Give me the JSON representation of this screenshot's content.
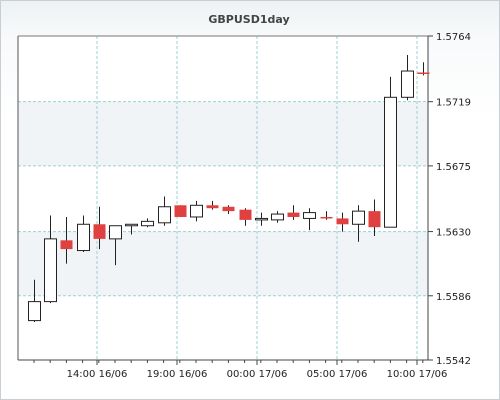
{
  "chart_data": {
    "type": "candlestick",
    "title": "GBPUSD1day",
    "y_axis_position": "right",
    "ylim": [
      1.5542,
      1.5764
    ],
    "y_ticks": [
      "1.5764",
      "1.5719",
      "1.5675",
      "1.5630",
      "1.5586",
      "1.5542"
    ],
    "x_ticks": [
      "14:00 16/06",
      "19:00 16/06",
      "00:00 17/06",
      "05:00 17/06",
      "10:00 17/06"
    ],
    "grid": true,
    "background_bands": [
      "#ffffff",
      "#f0f4f7"
    ],
    "colors": {
      "up": "#ffffff",
      "down": "#e04040",
      "wick": "#222222",
      "grid": "#9ed0d6"
    },
    "candles": [
      {
        "open": 1.5569,
        "high": 1.5597,
        "low": 1.5568,
        "close": 1.5582
      },
      {
        "open": 1.5582,
        "high": 1.5641,
        "low": 1.5581,
        "close": 1.5625
      },
      {
        "open": 1.5624,
        "high": 1.564,
        "low": 1.5608,
        "close": 1.5618
      },
      {
        "open": 1.5617,
        "high": 1.5641,
        "low": 1.5616,
        "close": 1.5635
      },
      {
        "open": 1.5635,
        "high": 1.5647,
        "low": 1.5618,
        "close": 1.5625
      },
      {
        "open": 1.5625,
        "high": 1.5634,
        "low": 1.5607,
        "close": 1.5634
      },
      {
        "open": 1.5634,
        "high": 1.5635,
        "low": 1.5628,
        "close": 1.5635
      },
      {
        "open": 1.5634,
        "high": 1.5639,
        "low": 1.5633,
        "close": 1.5637
      },
      {
        "open": 1.5636,
        "high": 1.5654,
        "low": 1.5634,
        "close": 1.5647
      },
      {
        "open": 1.5648,
        "high": 1.5648,
        "low": 1.564,
        "close": 1.564
      },
      {
        "open": 1.564,
        "high": 1.5651,
        "low": 1.5637,
        "close": 1.5648
      },
      {
        "open": 1.5648,
        "high": 1.5651,
        "low": 1.5645,
        "close": 1.5646
      },
      {
        "open": 1.5647,
        "high": 1.5648,
        "low": 1.5642,
        "close": 1.5644
      },
      {
        "open": 1.5645,
        "high": 1.5646,
        "low": 1.5634,
        "close": 1.5638
      },
      {
        "open": 1.5638,
        "high": 1.5643,
        "low": 1.5634,
        "close": 1.5639
      },
      {
        "open": 1.5638,
        "high": 1.5644,
        "low": 1.5636,
        "close": 1.5642
      },
      {
        "open": 1.5643,
        "high": 1.5648,
        "low": 1.5638,
        "close": 1.564
      },
      {
        "open": 1.5639,
        "high": 1.5646,
        "low": 1.5631,
        "close": 1.5643
      },
      {
        "open": 1.564,
        "high": 1.5644,
        "low": 1.5638,
        "close": 1.5639
      },
      {
        "open": 1.5639,
        "high": 1.5643,
        "low": 1.563,
        "close": 1.5635
      },
      {
        "open": 1.5635,
        "high": 1.5648,
        "low": 1.5623,
        "close": 1.5644
      },
      {
        "open": 1.5644,
        "high": 1.5652,
        "low": 1.5627,
        "close": 1.5633
      },
      {
        "open": 1.5633,
        "high": 1.5736,
        "low": 1.5633,
        "close": 1.5722
      },
      {
        "open": 1.5722,
        "high": 1.5751,
        "low": 1.572,
        "close": 1.574
      },
      {
        "open": 1.5739,
        "high": 1.5746,
        "low": 1.5737,
        "close": 1.5738
      }
    ]
  }
}
